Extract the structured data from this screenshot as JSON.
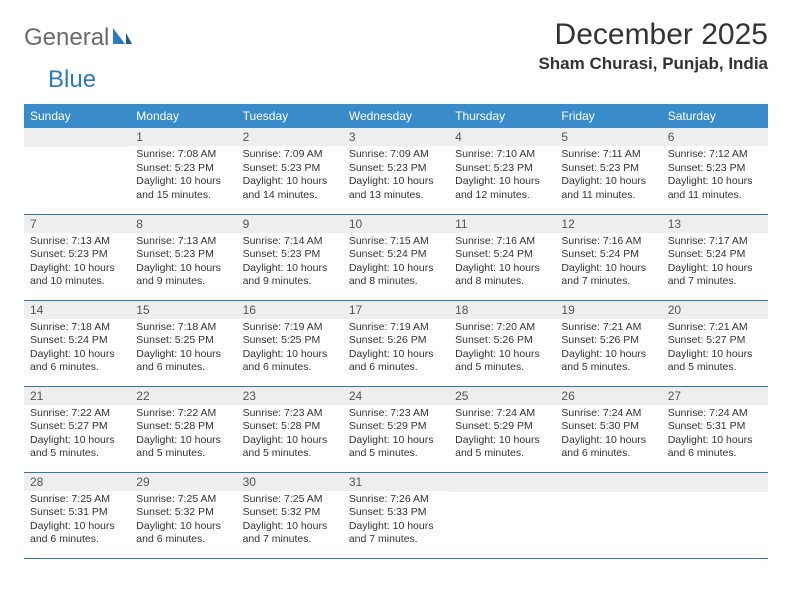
{
  "logo": {
    "text1": "General",
    "text2": "Blue"
  },
  "title": "December 2025",
  "location": "Sham Churasi, Punjab, India",
  "weekdays": [
    "Sunday",
    "Monday",
    "Tuesday",
    "Wednesday",
    "Thursday",
    "Friday",
    "Saturday"
  ],
  "colors": {
    "header_bg": "#3a8bc9",
    "header_text": "#ffffff",
    "daynum_bg": "#eeeeee",
    "border": "#3a73a8",
    "logo_gray": "#6b6b6b",
    "logo_blue": "#2b7bbf",
    "body_text": "#333333"
  },
  "weeks": [
    [
      {
        "n": "",
        "sunrise": "",
        "sunset": "",
        "daylight": ""
      },
      {
        "n": "1",
        "sunrise": "Sunrise: 7:08 AM",
        "sunset": "Sunset: 5:23 PM",
        "daylight": "Daylight: 10 hours and 15 minutes."
      },
      {
        "n": "2",
        "sunrise": "Sunrise: 7:09 AM",
        "sunset": "Sunset: 5:23 PM",
        "daylight": "Daylight: 10 hours and 14 minutes."
      },
      {
        "n": "3",
        "sunrise": "Sunrise: 7:09 AM",
        "sunset": "Sunset: 5:23 PM",
        "daylight": "Daylight: 10 hours and 13 minutes."
      },
      {
        "n": "4",
        "sunrise": "Sunrise: 7:10 AM",
        "sunset": "Sunset: 5:23 PM",
        "daylight": "Daylight: 10 hours and 12 minutes."
      },
      {
        "n": "5",
        "sunrise": "Sunrise: 7:11 AM",
        "sunset": "Sunset: 5:23 PM",
        "daylight": "Daylight: 10 hours and 11 minutes."
      },
      {
        "n": "6",
        "sunrise": "Sunrise: 7:12 AM",
        "sunset": "Sunset: 5:23 PM",
        "daylight": "Daylight: 10 hours and 11 minutes."
      }
    ],
    [
      {
        "n": "7",
        "sunrise": "Sunrise: 7:13 AM",
        "sunset": "Sunset: 5:23 PM",
        "daylight": "Daylight: 10 hours and 10 minutes."
      },
      {
        "n": "8",
        "sunrise": "Sunrise: 7:13 AM",
        "sunset": "Sunset: 5:23 PM",
        "daylight": "Daylight: 10 hours and 9 minutes."
      },
      {
        "n": "9",
        "sunrise": "Sunrise: 7:14 AM",
        "sunset": "Sunset: 5:23 PM",
        "daylight": "Daylight: 10 hours and 9 minutes."
      },
      {
        "n": "10",
        "sunrise": "Sunrise: 7:15 AM",
        "sunset": "Sunset: 5:24 PM",
        "daylight": "Daylight: 10 hours and 8 minutes."
      },
      {
        "n": "11",
        "sunrise": "Sunrise: 7:16 AM",
        "sunset": "Sunset: 5:24 PM",
        "daylight": "Daylight: 10 hours and 8 minutes."
      },
      {
        "n": "12",
        "sunrise": "Sunrise: 7:16 AM",
        "sunset": "Sunset: 5:24 PM",
        "daylight": "Daylight: 10 hours and 7 minutes."
      },
      {
        "n": "13",
        "sunrise": "Sunrise: 7:17 AM",
        "sunset": "Sunset: 5:24 PM",
        "daylight": "Daylight: 10 hours and 7 minutes."
      }
    ],
    [
      {
        "n": "14",
        "sunrise": "Sunrise: 7:18 AM",
        "sunset": "Sunset: 5:24 PM",
        "daylight": "Daylight: 10 hours and 6 minutes."
      },
      {
        "n": "15",
        "sunrise": "Sunrise: 7:18 AM",
        "sunset": "Sunset: 5:25 PM",
        "daylight": "Daylight: 10 hours and 6 minutes."
      },
      {
        "n": "16",
        "sunrise": "Sunrise: 7:19 AM",
        "sunset": "Sunset: 5:25 PM",
        "daylight": "Daylight: 10 hours and 6 minutes."
      },
      {
        "n": "17",
        "sunrise": "Sunrise: 7:19 AM",
        "sunset": "Sunset: 5:26 PM",
        "daylight": "Daylight: 10 hours and 6 minutes."
      },
      {
        "n": "18",
        "sunrise": "Sunrise: 7:20 AM",
        "sunset": "Sunset: 5:26 PM",
        "daylight": "Daylight: 10 hours and 5 minutes."
      },
      {
        "n": "19",
        "sunrise": "Sunrise: 7:21 AM",
        "sunset": "Sunset: 5:26 PM",
        "daylight": "Daylight: 10 hours and 5 minutes."
      },
      {
        "n": "20",
        "sunrise": "Sunrise: 7:21 AM",
        "sunset": "Sunset: 5:27 PM",
        "daylight": "Daylight: 10 hours and 5 minutes."
      }
    ],
    [
      {
        "n": "21",
        "sunrise": "Sunrise: 7:22 AM",
        "sunset": "Sunset: 5:27 PM",
        "daylight": "Daylight: 10 hours and 5 minutes."
      },
      {
        "n": "22",
        "sunrise": "Sunrise: 7:22 AM",
        "sunset": "Sunset: 5:28 PM",
        "daylight": "Daylight: 10 hours and 5 minutes."
      },
      {
        "n": "23",
        "sunrise": "Sunrise: 7:23 AM",
        "sunset": "Sunset: 5:28 PM",
        "daylight": "Daylight: 10 hours and 5 minutes."
      },
      {
        "n": "24",
        "sunrise": "Sunrise: 7:23 AM",
        "sunset": "Sunset: 5:29 PM",
        "daylight": "Daylight: 10 hours and 5 minutes."
      },
      {
        "n": "25",
        "sunrise": "Sunrise: 7:24 AM",
        "sunset": "Sunset: 5:29 PM",
        "daylight": "Daylight: 10 hours and 5 minutes."
      },
      {
        "n": "26",
        "sunrise": "Sunrise: 7:24 AM",
        "sunset": "Sunset: 5:30 PM",
        "daylight": "Daylight: 10 hours and 6 minutes."
      },
      {
        "n": "27",
        "sunrise": "Sunrise: 7:24 AM",
        "sunset": "Sunset: 5:31 PM",
        "daylight": "Daylight: 10 hours and 6 minutes."
      }
    ],
    [
      {
        "n": "28",
        "sunrise": "Sunrise: 7:25 AM",
        "sunset": "Sunset: 5:31 PM",
        "daylight": "Daylight: 10 hours and 6 minutes."
      },
      {
        "n": "29",
        "sunrise": "Sunrise: 7:25 AM",
        "sunset": "Sunset: 5:32 PM",
        "daylight": "Daylight: 10 hours and 6 minutes."
      },
      {
        "n": "30",
        "sunrise": "Sunrise: 7:25 AM",
        "sunset": "Sunset: 5:32 PM",
        "daylight": "Daylight: 10 hours and 7 minutes."
      },
      {
        "n": "31",
        "sunrise": "Sunrise: 7:26 AM",
        "sunset": "Sunset: 5:33 PM",
        "daylight": "Daylight: 10 hours and 7 minutes."
      },
      {
        "n": "",
        "sunrise": "",
        "sunset": "",
        "daylight": ""
      },
      {
        "n": "",
        "sunrise": "",
        "sunset": "",
        "daylight": ""
      },
      {
        "n": "",
        "sunrise": "",
        "sunset": "",
        "daylight": ""
      }
    ]
  ]
}
